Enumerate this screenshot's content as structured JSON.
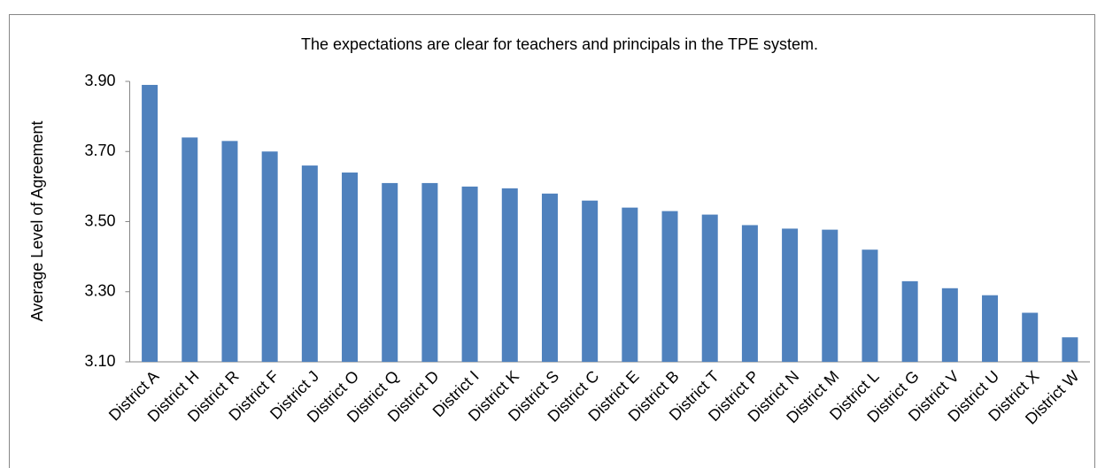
{
  "chart_data": {
    "type": "bar",
    "title": "The expectations are clear for teachers and principals in the TPE system.",
    "y_label": "Average Level of Agreement",
    "categories": [
      "District A",
      "District H",
      "District R",
      "District F",
      "District J",
      "District O",
      "District Q",
      "District D",
      "District I",
      "District K",
      "District S",
      "District C",
      "District E",
      "District B",
      "District T",
      "District P",
      "District N",
      "District M",
      "District L",
      "District G",
      "District V",
      "District U",
      "District X",
      "District W"
    ],
    "values": [
      3.89,
      3.74,
      3.73,
      3.7,
      3.66,
      3.64,
      3.61,
      3.61,
      3.6,
      3.595,
      3.58,
      3.56,
      3.54,
      3.53,
      3.52,
      3.49,
      3.48,
      3.477,
      3.42,
      3.33,
      3.31,
      3.29,
      3.24,
      3.17
    ],
    "color": "#4f81bd",
    "ylim": [
      3.1,
      3.9
    ],
    "yticks": [
      {
        "value": 3.1,
        "label": "3.10"
      },
      {
        "value": 3.3,
        "label": "3.30"
      },
      {
        "value": 3.5,
        "label": "3.50"
      },
      {
        "value": 3.7,
        "label": "3.70"
      },
      {
        "value": 3.9,
        "label": "3.90"
      }
    ],
    "grid": false
  }
}
